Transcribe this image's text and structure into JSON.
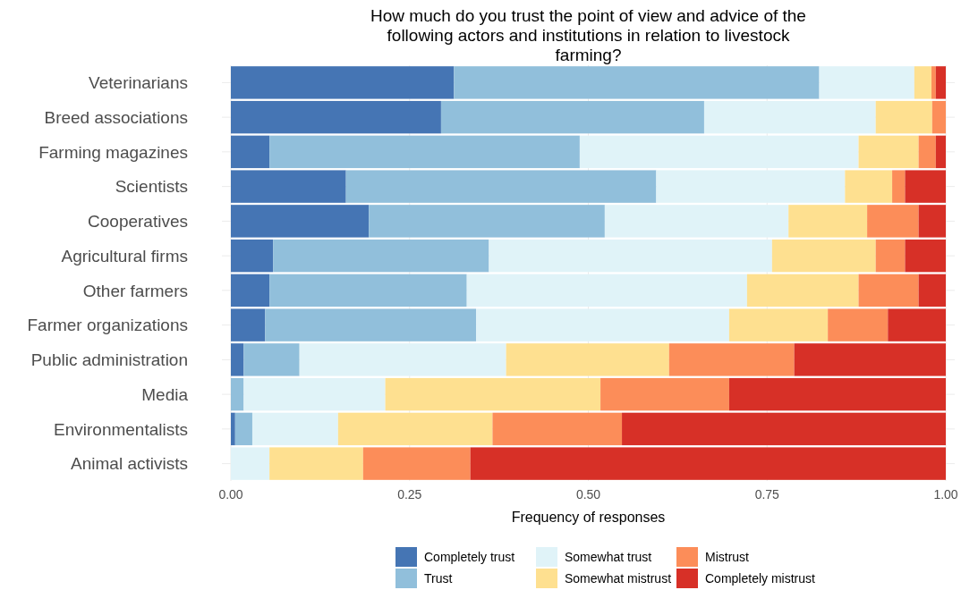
{
  "chart_data": {
    "type": "bar",
    "orientation": "horizontal",
    "stacked": true,
    "title": "How much do you trust the point of view and advice of the following actors and institutions in relation to livestock farming?",
    "xlabel": "Frequency of responses",
    "categories": [
      "Veterinarians",
      "Breed associations",
      "Farming magazines",
      "Scientists",
      "Cooperatives",
      "Agricultural firms",
      "Other farmers",
      "Farmer organizations",
      "Public administration",
      "Media",
      "Environmentalists",
      "Animal activists"
    ],
    "series": [
      {
        "name": "Completely trust",
        "color": "#4575b4",
        "values": [
          0.312,
          0.294,
          0.054,
          0.161,
          0.193,
          0.059,
          0.054,
          0.048,
          0.018,
          0,
          0.006,
          0
        ]
      },
      {
        "name": "Trust",
        "color": "#91bfdb",
        "values": [
          0.511,
          0.368,
          0.434,
          0.434,
          0.33,
          0.302,
          0.276,
          0.295,
          0.078,
          0.018,
          0.024,
          0
        ]
      },
      {
        "name": "Somewhat trust",
        "color": "#e0f3f8",
        "values": [
          0.133,
          0.24,
          0.39,
          0.264,
          0.257,
          0.396,
          0.392,
          0.354,
          0.289,
          0.198,
          0.12,
          0.054
        ]
      },
      {
        "name": "Somewhat mistrust",
        "color": "#fee090",
        "values": [
          0.024,
          0.079,
          0.084,
          0.066,
          0.11,
          0.145,
          0.156,
          0.138,
          0.228,
          0.301,
          0.216,
          0.131
        ]
      },
      {
        "name": "Mistrust",
        "color": "#fc8d59",
        "values": [
          0.006,
          0.019,
          0.024,
          0.018,
          0.072,
          0.041,
          0.084,
          0.084,
          0.175,
          0.18,
          0.181,
          0.15
        ]
      },
      {
        "name": "Completely mistrust",
        "color": "#d73027",
        "values": [
          0.014,
          0,
          0.014,
          0.057,
          0.038,
          0.057,
          0.038,
          0.081,
          0.212,
          0.303,
          0.453,
          0.665
        ]
      }
    ],
    "xlim": [
      0,
      1
    ],
    "xticks": [
      {
        "value": 0,
        "label": "0.00"
      },
      {
        "value": 0.25,
        "label": "0.25"
      },
      {
        "value": 0.5,
        "label": "0.50"
      },
      {
        "value": 0.75,
        "label": "0.75"
      },
      {
        "value": 1,
        "label": "1.00"
      }
    ],
    "grid": true,
    "legend": "bottom"
  }
}
